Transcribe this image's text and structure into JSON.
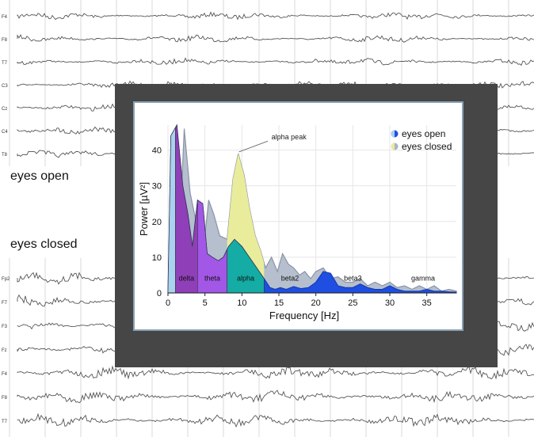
{
  "eeg_top": {
    "caption": "eyes open",
    "channels": [
      "F4",
      "F8",
      "T7",
      "C3",
      "Cz",
      "C4",
      "T8"
    ]
  },
  "eeg_bottom": {
    "caption": "eyes closed",
    "channels": [
      "Fp2",
      "F7",
      "F3",
      "Fz",
      "F4",
      "F8",
      "T7"
    ]
  },
  "chart_data": {
    "type": "area",
    "xlabel": "Frequency [Hz]",
    "ylabel": "Power [µV²]",
    "xlim": [
      0,
      39
    ],
    "ylim": [
      0,
      47
    ],
    "xticks": [
      0,
      5,
      10,
      15,
      20,
      25,
      30,
      35
    ],
    "yticks": [
      0,
      10,
      20,
      30,
      40
    ],
    "grid": true,
    "legend_position": "top-right",
    "annotation": "alpha peak",
    "series": [
      {
        "name": "eyes closed",
        "color": "#a9b4c6",
        "points": [
          [
            0,
            0
          ],
          [
            0.5,
            43
          ],
          [
            1.2,
            36
          ],
          [
            1.8,
            27
          ],
          [
            2.2,
            46
          ],
          [
            3,
            28
          ],
          [
            4,
            18
          ],
          [
            4.8,
            12
          ],
          [
            5.5,
            26
          ],
          [
            6.2,
            22
          ],
          [
            7,
            16
          ],
          [
            8,
            15
          ],
          [
            8.8,
            32
          ],
          [
            9.5,
            39
          ],
          [
            10.3,
            33
          ],
          [
            11,
            24
          ],
          [
            11.8,
            16
          ],
          [
            12.5,
            12
          ],
          [
            13.2,
            7
          ],
          [
            14,
            10
          ],
          [
            14.8,
            6
          ],
          [
            15.5,
            11
          ],
          [
            16.3,
            8
          ],
          [
            17,
            7
          ],
          [
            17.8,
            5
          ],
          [
            18.5,
            6
          ],
          [
            19.3,
            4
          ],
          [
            20,
            6
          ],
          [
            21,
            7
          ],
          [
            22,
            4
          ],
          [
            23,
            4.5
          ],
          [
            24,
            3
          ],
          [
            25,
            3
          ],
          [
            26,
            4
          ],
          [
            27,
            2
          ],
          [
            28,
            3
          ],
          [
            29,
            2
          ],
          [
            30,
            3
          ],
          [
            31,
            1.5
          ],
          [
            32,
            2
          ],
          [
            33,
            1
          ],
          [
            34,
            2
          ],
          [
            35,
            1
          ],
          [
            36,
            2
          ],
          [
            37,
            0.5
          ],
          [
            38,
            1
          ],
          [
            39,
            0.5
          ],
          [
            39,
            0
          ]
        ]
      },
      {
        "name": "eyes open",
        "color": "#1f4fe0",
        "points": [
          [
            0,
            0
          ],
          [
            0.4,
            44
          ],
          [
            1.2,
            47
          ],
          [
            2,
            30
          ],
          [
            2.7,
            22
          ],
          [
            3.3,
            13
          ],
          [
            4,
            26
          ],
          [
            4.7,
            25
          ],
          [
            5.3,
            11
          ],
          [
            6,
            10
          ],
          [
            6.8,
            9
          ],
          [
            7.5,
            10
          ],
          [
            8.2,
            13
          ],
          [
            9,
            15
          ],
          [
            10,
            13
          ],
          [
            11,
            10
          ],
          [
            12,
            7
          ],
          [
            13,
            4
          ],
          [
            13.8,
            1.5
          ],
          [
            14.5,
            1
          ],
          [
            15.2,
            1.5
          ],
          [
            16,
            1
          ],
          [
            17,
            1.8
          ],
          [
            18,
            1.2
          ],
          [
            19,
            1.5
          ],
          [
            20,
            3
          ],
          [
            21,
            6
          ],
          [
            22,
            5.5
          ],
          [
            23,
            2
          ],
          [
            24,
            1.5
          ],
          [
            25,
            1.5
          ],
          [
            26,
            2.5
          ],
          [
            27,
            1.5
          ],
          [
            28,
            1
          ],
          [
            29,
            1
          ],
          [
            30,
            2
          ],
          [
            31,
            1
          ],
          [
            32,
            0.5
          ],
          [
            33,
            0.5
          ],
          [
            34,
            0.5
          ],
          [
            35,
            1
          ],
          [
            36,
            0.5
          ],
          [
            37,
            0.5
          ],
          [
            38,
            0.3
          ],
          [
            39,
            0.2
          ],
          [
            39,
            0
          ]
        ]
      }
    ],
    "bands": [
      {
        "name": "",
        "from": 0,
        "to": 1,
        "color": "#a9d1f0"
      },
      {
        "name": "delta",
        "from": 1,
        "to": 4,
        "color": "#8f3fb8"
      },
      {
        "name": "theta",
        "from": 4,
        "to": 8,
        "color": "#a257e6"
      },
      {
        "name": "alpha",
        "from": 8,
        "to": 13,
        "color": "#14aca4"
      },
      {
        "name": "beta2",
        "from": 13,
        "to": 20
      },
      {
        "name": "beta3",
        "from": 20,
        "to": 30
      },
      {
        "name": "gamma",
        "from": 30,
        "to": 39
      }
    ],
    "closed_band_fills": {
      "alpha": "#e9ec9a"
    }
  }
}
